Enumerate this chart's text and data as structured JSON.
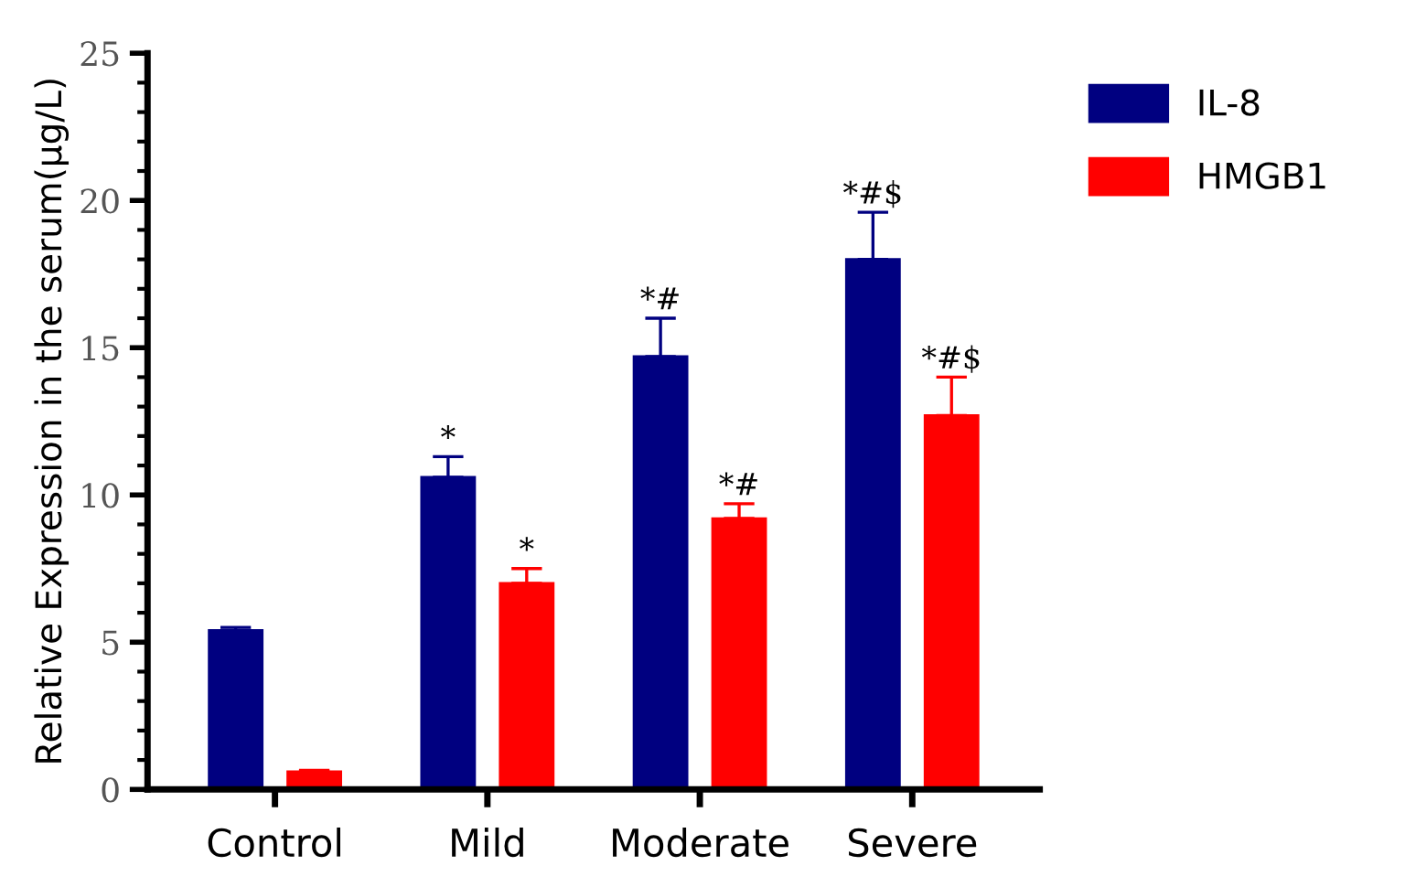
{
  "chart_data": {
    "type": "bar",
    "ylabel": "Relative Expression in the serum(μg/L)",
    "categories": [
      "Control",
      "Mild",
      "Moderate",
      "Severe"
    ],
    "series": [
      {
        "name": "IL-8",
        "color": "#000080",
        "values": [
          5.4,
          10.6,
          14.7,
          18.0
        ],
        "errors": [
          0.1,
          0.7,
          1.3,
          1.6
        ],
        "value_labels": [
          null,
          "*",
          "*#",
          "*#$"
        ]
      },
      {
        "name": "HMGB1",
        "color": "#ff0000",
        "values": [
          0.6,
          7.0,
          9.2,
          12.7
        ],
        "errors": [
          0.05,
          0.5,
          0.5,
          1.3
        ],
        "value_labels": [
          null,
          "*",
          "*#",
          "*#$"
        ]
      }
    ],
    "ylim": [
      0,
      25
    ],
    "yticks": [
      0,
      5,
      10,
      15,
      20,
      25
    ],
    "legend": "top right",
    "grid": false
  }
}
